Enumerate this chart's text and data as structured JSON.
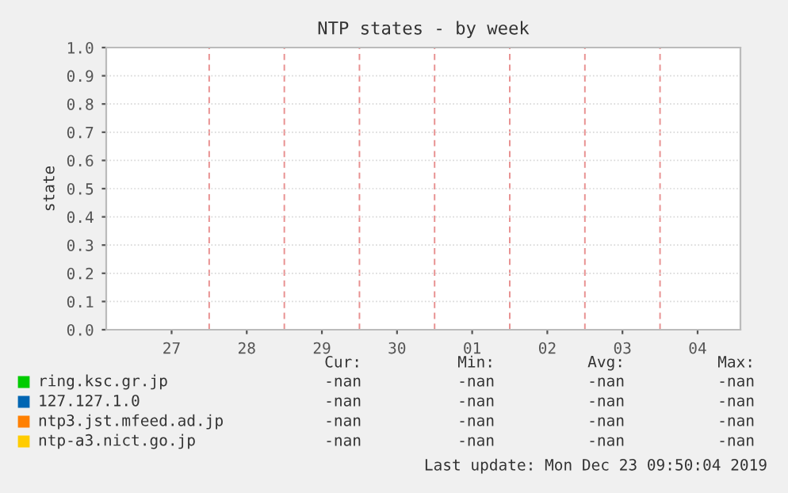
{
  "chart_data": {
    "type": "line",
    "title": "NTP states - by week",
    "ylabel": "state",
    "categories": [
      "27",
      "28",
      "29",
      "30",
      "01",
      "02",
      "03",
      "04"
    ],
    "ylim": [
      0,
      1.0
    ],
    "yticks": [
      {
        "value": 0,
        "label": "0.0"
      },
      {
        "value": 0.1,
        "label": "0.1"
      },
      {
        "value": 0.2,
        "label": "0.2"
      },
      {
        "value": 0.3,
        "label": "0.3"
      },
      {
        "value": 0.4,
        "label": "0.4"
      },
      {
        "value": 0.5,
        "label": "0.5"
      },
      {
        "value": 0.6,
        "label": "0.6"
      },
      {
        "value": 0.7,
        "label": "0.7"
      },
      {
        "value": 0.8,
        "label": "0.8"
      },
      {
        "value": 0.9,
        "label": "0.9"
      },
      {
        "value": 1.0,
        "label": "1.0"
      }
    ],
    "grid": true,
    "legend": "bottom",
    "series": [
      {
        "name": "ring.ksc.gr.jp",
        "color": "#00cc00",
        "values": [
          null,
          null,
          null,
          null,
          null,
          null,
          null,
          null
        ]
      },
      {
        "name": "127.127.1.0",
        "color": "#0066b3",
        "values": [
          null,
          null,
          null,
          null,
          null,
          null,
          null,
          null
        ]
      },
      {
        "name": "ntp3.jst.mfeed.ad.jp",
        "color": "#ff8000",
        "values": [
          null,
          null,
          null,
          null,
          null,
          null,
          null,
          null
        ]
      },
      {
        "name": "ntp-a3.nict.go.jp",
        "color": "#ffcc00",
        "values": [
          null,
          null,
          null,
          null,
          null,
          null,
          null,
          null
        ]
      }
    ],
    "annotations": [
      "Last update: Mon Dec 23 09:50:04 2019",
      "Cur:",
      "Min:",
      "Avg:",
      "Max:",
      "-nan",
      "-nan",
      "-nan",
      "-nan",
      "-nan",
      "-nan",
      "-nan",
      "-nan",
      "-nan",
      "-nan",
      "-nan",
      "-nan",
      "-nan",
      "-nan",
      "-nan",
      "-nan"
    ]
  }
}
